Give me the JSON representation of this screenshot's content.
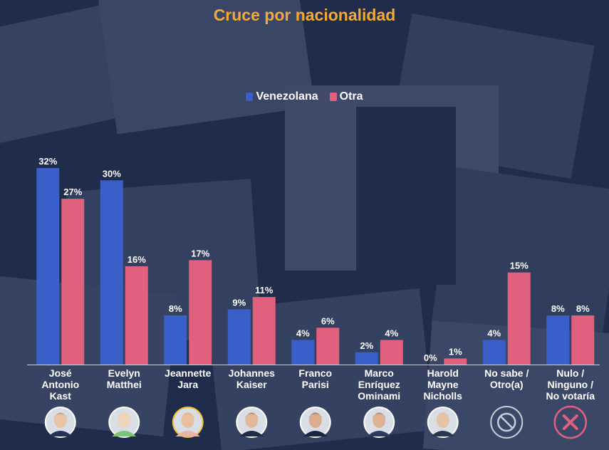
{
  "colors": {
    "venezolana": "#3a5fc8",
    "otra": "#e0607e",
    "title": "#f5a83a"
  },
  "icons": [
    "avatar-kast",
    "avatar-matthei",
    "avatar-jara",
    "avatar-kaiser",
    "avatar-parisi",
    "avatar-ominami",
    "avatar-nicholls",
    "ban-icon",
    "close-icon"
  ],
  "chart_data": {
    "type": "bar",
    "title": "Cruce por nacionalidad",
    "xlabel": "",
    "ylabel": "",
    "ylim": [
      0,
      33
    ],
    "grid": false,
    "legend_placement": "top-center",
    "categories": [
      [
        "José",
        "Antonio",
        "Kast"
      ],
      [
        "Evelyn",
        "Matthei"
      ],
      [
        "Jeannette",
        "Jara"
      ],
      [
        "Johannes",
        "Kaiser"
      ],
      [
        "Franco",
        "Parisi"
      ],
      [
        "Marco",
        "Enríquez",
        "Ominami"
      ],
      [
        "Harold",
        "Mayne",
        "Nicholls"
      ],
      [
        "No sabe /",
        "Otro(a)"
      ],
      [
        "Nulo /",
        "Ninguno /",
        "No votaría"
      ]
    ],
    "series": [
      {
        "name": "Venezolana",
        "values": [
          32,
          30,
          8,
          9,
          4,
          2,
          0,
          4,
          8
        ],
        "labels": [
          "32%",
          "30%",
          "8%",
          "9%",
          "4%",
          "2%",
          "0%",
          "4%",
          "8%"
        ]
      },
      {
        "name": "Otra",
        "values": [
          27,
          16,
          17,
          11,
          6,
          4,
          1,
          15,
          8
        ],
        "labels": [
          "27%",
          "16%",
          "17%",
          "11%",
          "6%",
          "4%",
          "1%",
          "15%",
          "8%"
        ]
      }
    ]
  }
}
